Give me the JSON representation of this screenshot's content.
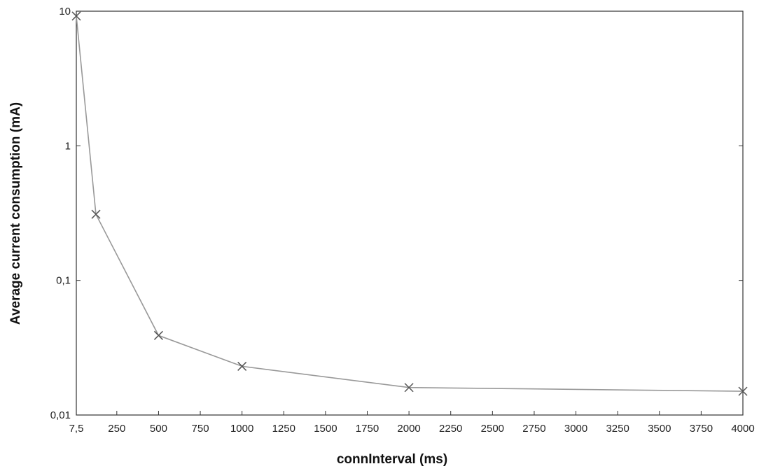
{
  "chart_data": {
    "type": "line",
    "xlabel": "connInterval (ms)",
    "ylabel": "Average current consumption  (mA)",
    "x_scale": "linear",
    "y_scale": "log",
    "xlim": [
      7.5,
      4000
    ],
    "ylim": [
      0.01,
      10
    ],
    "grid": false,
    "x_ticks": [
      {
        "value": 7.5,
        "label": "7,5"
      },
      {
        "value": 250,
        "label": "250"
      },
      {
        "value": 500,
        "label": "500"
      },
      {
        "value": 750,
        "label": "750"
      },
      {
        "value": 1000,
        "label": "1000"
      },
      {
        "value": 1250,
        "label": "1250"
      },
      {
        "value": 1500,
        "label": "1500"
      },
      {
        "value": 1750,
        "label": "1750"
      },
      {
        "value": 2000,
        "label": "2000"
      },
      {
        "value": 2250,
        "label": "2250"
      },
      {
        "value": 2500,
        "label": "2500"
      },
      {
        "value": 2750,
        "label": "2750"
      },
      {
        "value": 3000,
        "label": "3000"
      },
      {
        "value": 3250,
        "label": "3250"
      },
      {
        "value": 3500,
        "label": "3500"
      },
      {
        "value": 3750,
        "label": "3750"
      },
      {
        "value": 4000,
        "label": "4000"
      }
    ],
    "y_ticks": [
      {
        "value": 0.01,
        "label": "0,01"
      },
      {
        "value": 0.1,
        "label": "0,1"
      },
      {
        "value": 1,
        "label": "1"
      },
      {
        "value": 10,
        "label": "10"
      }
    ],
    "series": [
      {
        "marker": "x",
        "color": "#555555",
        "points": [
          {
            "x": 7.5,
            "y": 9.2
          },
          {
            "x": 125,
            "y": 0.31
          },
          {
            "x": 500,
            "y": 0.039
          },
          {
            "x": 1000,
            "y": 0.023
          },
          {
            "x": 2000,
            "y": 0.016
          },
          {
            "x": 4000,
            "y": 0.015
          }
        ]
      }
    ]
  }
}
